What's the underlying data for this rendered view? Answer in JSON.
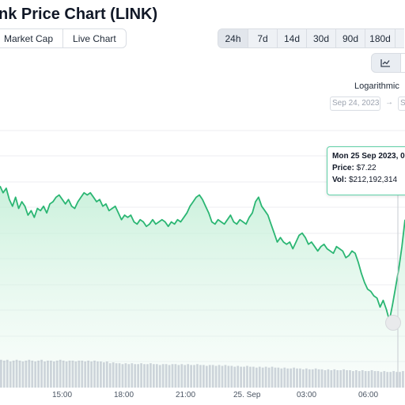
{
  "header": {
    "title": "nk Price Chart (LINK)"
  },
  "chart_tabs": {
    "market_cap": "Market Cap",
    "live_chart": "Live Chart"
  },
  "ranges": [
    "24h",
    "7d",
    "14d",
    "30d",
    "90d",
    "180d"
  ],
  "active_range": "24h",
  "view_toggle": {
    "line_icon": "line-chart-icon"
  },
  "scale": {
    "logarithmic_label": "Logarithmic"
  },
  "date_range": {
    "from": "Sep 24, 2023",
    "arrow": "→",
    "to": "Se"
  },
  "tooltip": {
    "date": "Mon 25 Sep 2023, 0",
    "price_label": "Price:",
    "price_value": "$7.22",
    "vol_label": "Vol:",
    "vol_value": "$212,192,314"
  },
  "x_axis_labels": [
    "15:00",
    "18:00",
    "21:00",
    "25. Sep",
    "03:00",
    "06:00"
  ],
  "colors": {
    "line": "#2bb673",
    "fill_top": "#b9ecd0",
    "volume": "#aab2c0",
    "grid": "#eceef1",
    "tooltip_border": "#5fd1a7"
  },
  "chart_data": {
    "type": "line",
    "series": [
      {
        "values": [
          7.37,
          7.34,
          7.36,
          7.31,
          7.28,
          7.32,
          7.27,
          7.3,
          7.28,
          7.24,
          7.26,
          7.23,
          7.27,
          7.26,
          7.28,
          7.25,
          7.29,
          7.3,
          7.32,
          7.33,
          7.31,
          7.29,
          7.31,
          7.28,
          7.27,
          7.3,
          7.32,
          7.34,
          7.33,
          7.34,
          7.32,
          7.3,
          7.31,
          7.28,
          7.29,
          7.26,
          7.27,
          7.28,
          7.25,
          7.22,
          7.24,
          7.23,
          7.24,
          7.21,
          7.2,
          7.22,
          7.21,
          7.19,
          7.2,
          7.22,
          7.2,
          7.21,
          7.22,
          7.21,
          7.19,
          7.21,
          7.2,
          7.22,
          7.21,
          7.23,
          7.25,
          7.28,
          7.3,
          7.32,
          7.33,
          7.31,
          7.28,
          7.25,
          7.21,
          7.2,
          7.22,
          7.21,
          7.2,
          7.22,
          7.24,
          7.21,
          7.2,
          7.22,
          7.21,
          7.2,
          7.23,
          7.25,
          7.3,
          7.32,
          7.28,
          7.26,
          7.24,
          7.2,
          7.16,
          7.12,
          7.14,
          7.12,
          7.11,
          7.12,
          7.09,
          7.12,
          7.15,
          7.16,
          7.14,
          7.11,
          7.12,
          7.1,
          7.08,
          7.1,
          7.11,
          7.09,
          7.08,
          7.07,
          7.1,
          7.09,
          7.08,
          7.05,
          7.06,
          7.08,
          7.07,
          7.03,
          6.98,
          6.94,
          6.91,
          6.9,
          6.88,
          6.87,
          6.83,
          6.86,
          6.82,
          6.77,
          6.84,
          6.92,
          7.0,
          7.1,
          7.22
        ]
      }
    ],
    "x_ticks": [
      "15:00",
      "18:00",
      "21:00",
      "25. Sep",
      "03:00",
      "06:00"
    ],
    "volume": [
      0.32,
      0.31,
      0.32,
      0.3,
      0.31,
      0.32,
      0.31,
      0.3,
      0.31,
      0.32,
      0.31,
      0.3,
      0.31,
      0.32,
      0.3,
      0.31,
      0.31,
      0.3,
      0.31,
      0.32,
      0.31,
      0.3,
      0.31,
      0.31,
      0.3,
      0.31,
      0.31,
      0.3,
      0.31,
      0.3,
      0.31,
      0.3,
      0.3,
      0.29,
      0.3,
      0.28,
      0.29,
      0.28,
      0.28,
      0.27,
      0.28,
      0.27,
      0.28,
      0.27,
      0.27,
      0.28,
      0.27,
      0.27,
      0.28,
      0.27,
      0.27,
      0.26,
      0.27,
      0.27,
      0.26,
      0.27,
      0.27,
      0.26,
      0.27,
      0.26,
      0.27,
      0.26,
      0.26,
      0.27,
      0.26,
      0.26,
      0.25,
      0.26,
      0.26,
      0.25,
      0.26,
      0.25,
      0.26,
      0.25,
      0.25,
      0.24,
      0.25,
      0.24,
      0.24,
      0.25,
      0.24,
      0.24,
      0.23,
      0.24,
      0.23,
      0.24,
      0.23,
      0.24,
      0.23,
      0.23,
      0.22,
      0.23,
      0.22,
      0.22,
      0.23,
      0.22,
      0.22,
      0.21,
      0.22,
      0.21,
      0.21,
      0.22,
      0.21,
      0.21,
      0.2,
      0.21,
      0.2,
      0.21,
      0.2,
      0.2,
      0.21,
      0.2,
      0.2,
      0.19,
      0.2,
      0.19,
      0.2,
      0.19,
      0.19,
      0.2,
      0.19,
      0.19,
      0.18,
      0.19,
      0.18,
      0.18,
      0.19,
      0.18,
      0.18,
      0.19
    ],
    "grid": true
  }
}
